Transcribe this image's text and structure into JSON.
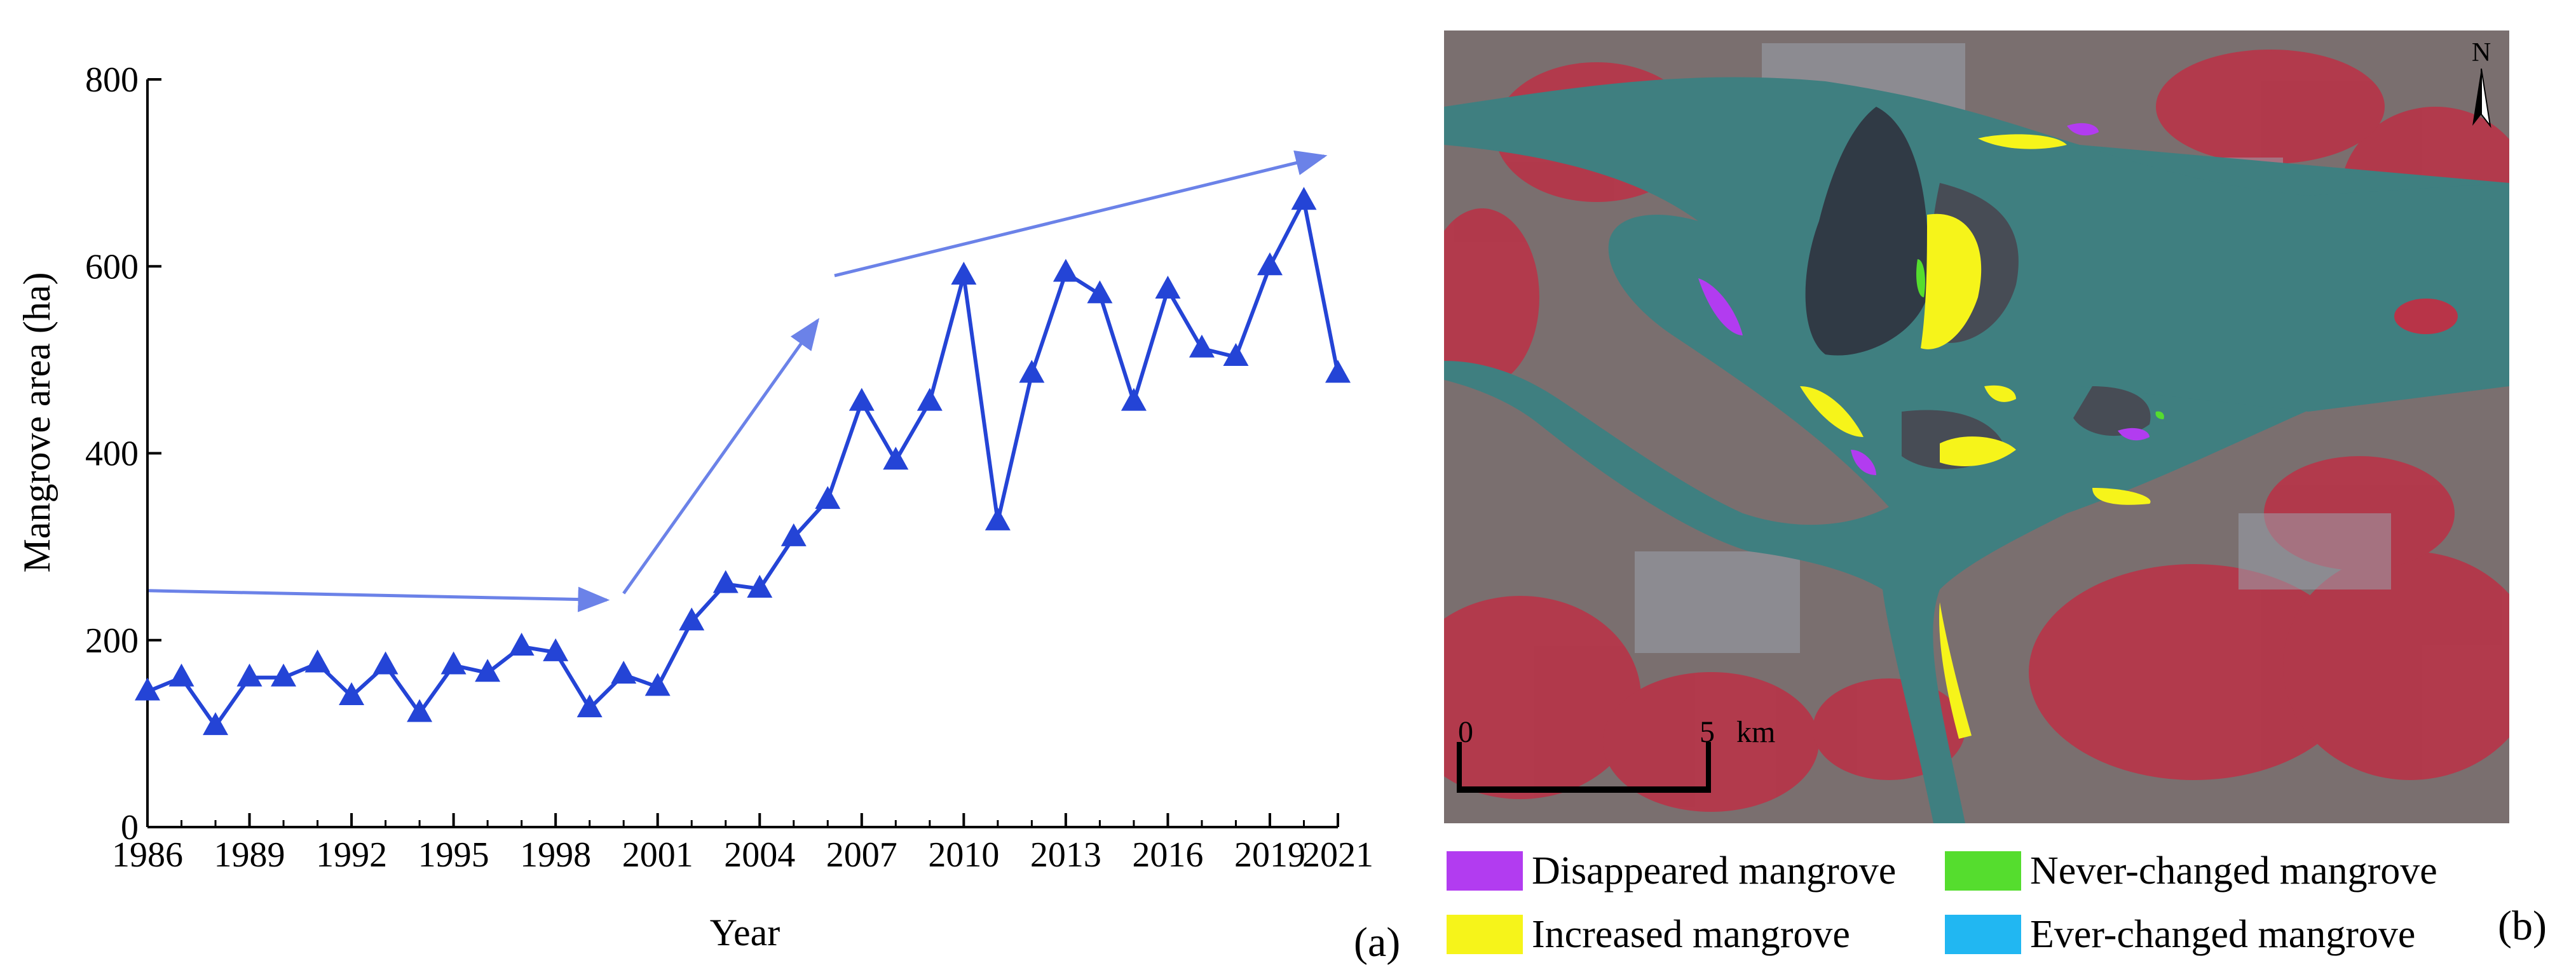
{
  "chart_data": [
    {
      "type": "line",
      "panel_label": "(a)",
      "xlabel": "Year",
      "ylabel": "Mangrove area (ha)",
      "xlim": [
        1986,
        2021
      ],
      "ylim": [
        0,
        800
      ],
      "xticks": [
        1986,
        1989,
        1992,
        1995,
        1998,
        2001,
        2004,
        2007,
        2010,
        2013,
        2016,
        2019,
        2021
      ],
      "yticks": [
        0,
        200,
        400,
        600,
        800
      ],
      "grid": false,
      "marker": "triangle",
      "color": "#2444d6",
      "trend_arrow_color": "#6b82e8",
      "x": [
        1986,
        1987,
        1988,
        1989,
        1990,
        1991,
        1992,
        1993,
        1994,
        1995,
        1996,
        1997,
        1998,
        1999,
        2000,
        2001,
        2002,
        2003,
        2004,
        2005,
        2006,
        2007,
        2008,
        2009,
        2010,
        2011,
        2012,
        2013,
        2014,
        2015,
        2016,
        2017,
        2018,
        2019,
        2020,
        2021
      ],
      "y": [
        145,
        160,
        108,
        160,
        160,
        175,
        140,
        173,
        122,
        173,
        165,
        193,
        187,
        127,
        163,
        150,
        220,
        260,
        255,
        310,
        350,
        455,
        392,
        455,
        590,
        327,
        485,
        593,
        570,
        455,
        575,
        512,
        503,
        600,
        670,
        485
      ]
    },
    {
      "type": "map",
      "panel_label": "(b)",
      "north_label": "N",
      "scale_bar": {
        "start": "0",
        "end": "5",
        "unit": "km"
      },
      "legend": [
        {
          "label": "Disappeared mangrove",
          "color": "#b23cf0"
        },
        {
          "label": "Never-changed mangrove",
          "color": "#55dd2e"
        },
        {
          "label": "Increased mangrove",
          "color": "#f6f41a"
        },
        {
          "label": "Ever-changed mangrove",
          "color": "#21b7f2"
        }
      ]
    }
  ]
}
